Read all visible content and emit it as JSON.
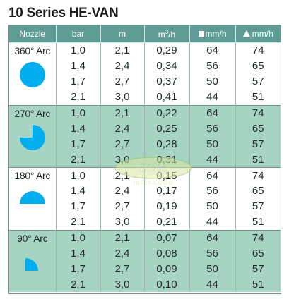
{
  "title": "10 Series HE-VAN",
  "colors": {
    "header": "#5f9c95",
    "band": "#a7d4c2",
    "icon": "#00aeef"
  },
  "headers": {
    "nozzle": "Nozzle",
    "bar": "bar",
    "m": "m",
    "m3h_base": "m",
    "m3h_sup": "3",
    "m3h_tail": "/h",
    "square_mmh": "mm/h",
    "triangle_mmh": "mm/h"
  },
  "groups": [
    {
      "nozzle": "360° Arc",
      "icon": "full-circle-icon",
      "rows": [
        {
          "bar": "1,0",
          "m": "2,1",
          "m3h": "0,29",
          "sq": "64",
          "tri": "74"
        },
        {
          "bar": "1,4",
          "m": "2,4",
          "m3h": "0,34",
          "sq": "56",
          "tri": "65"
        },
        {
          "bar": "1,7",
          "m": "2,7",
          "m3h": "0,37",
          "sq": "50",
          "tri": "57"
        },
        {
          "bar": "2,1",
          "m": "3,0",
          "m3h": "0,41",
          "sq": "44",
          "tri": "51"
        }
      ]
    },
    {
      "nozzle": "270° Arc",
      "icon": "three-quarter-circle-icon",
      "rows": [
        {
          "bar": "1,0",
          "m": "2,1",
          "m3h": "0,22",
          "sq": "64",
          "tri": "74"
        },
        {
          "bar": "1,4",
          "m": "2,4",
          "m3h": "0,25",
          "sq": "56",
          "tri": "65"
        },
        {
          "bar": "1,7",
          "m": "2,7",
          "m3h": "0,28",
          "sq": "50",
          "tri": "57"
        },
        {
          "bar": "2,1",
          "m": "3,0",
          "m3h": "0,31",
          "sq": "44",
          "tri": "51"
        }
      ]
    },
    {
      "nozzle": "180° Arc",
      "icon": "half-circle-icon",
      "rows": [
        {
          "bar": "1,0",
          "m": "2,1",
          "m3h": "0,15",
          "sq": "64",
          "tri": "74"
        },
        {
          "bar": "1,4",
          "m": "2,4",
          "m3h": "0,17",
          "sq": "56",
          "tri": "65"
        },
        {
          "bar": "1,7",
          "m": "2,7",
          "m3h": "0,19",
          "sq": "50",
          "tri": "57"
        },
        {
          "bar": "2,1",
          "m": "3,0",
          "m3h": "0,21",
          "sq": "44",
          "tri": "51"
        }
      ]
    },
    {
      "nozzle": "90° Arc",
      "icon": "quarter-circle-icon",
      "rows": [
        {
          "bar": "1,0",
          "m": "2,1",
          "m3h": "0,07",
          "sq": "64",
          "tri": "74"
        },
        {
          "bar": "1,4",
          "m": "2,4",
          "m3h": "0,08",
          "sq": "56",
          "tri": "65"
        },
        {
          "bar": "1,7",
          "m": "2,7",
          "m3h": "0,09",
          "sq": "50",
          "tri": "57"
        },
        {
          "bar": "2,1",
          "m": "3,0",
          "m3h": "0,10",
          "sq": "44",
          "tri": "51"
        }
      ]
    }
  ],
  "watermark": {
    "brand": "Lidia",
    "subtitle": "IRRIT-LOGO"
  }
}
